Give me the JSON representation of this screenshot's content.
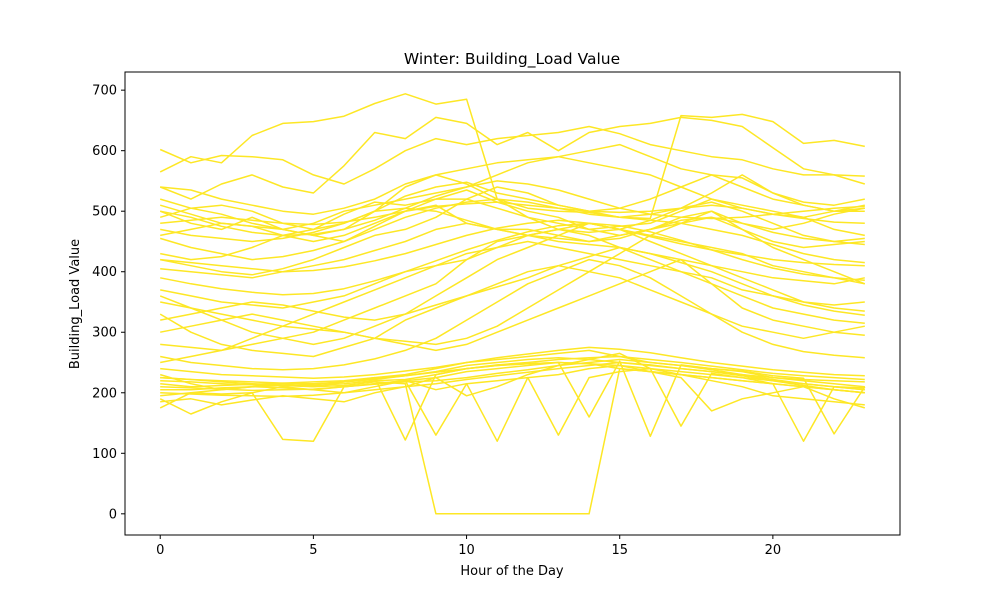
{
  "chart_data": {
    "type": "line",
    "title": "Winter: Building_Load Value",
    "xlabel": "Hour of the Day",
    "ylabel": "Building_Load Value",
    "xlim": [
      -1.15,
      24.15
    ],
    "ylim": [
      -35,
      730
    ],
    "xticks": [
      0,
      5,
      10,
      15,
      20
    ],
    "yticks": [
      0,
      100,
      200,
      300,
      400,
      500,
      600,
      700
    ],
    "grid": false,
    "legend": "none",
    "line_color": "#fde725",
    "x": [
      0,
      1,
      2,
      3,
      4,
      5,
      6,
      7,
      8,
      9,
      10,
      11,
      12,
      13,
      14,
      15,
      16,
      17,
      18,
      19,
      20,
      21,
      22,
      23
    ],
    "series": [
      {
        "values": [
          602,
          580,
          592,
          590,
          585,
          560,
          545,
          570,
          600,
          620,
          610,
          620,
          625,
          630,
          640,
          628,
          610,
          600,
          590,
          585,
          570,
          560,
          560,
          558
        ]
      },
      {
        "values": [
          565,
          590,
          580,
          625,
          645,
          648,
          657,
          678,
          694,
          677,
          685,
          520,
          505,
          500,
          498,
          490,
          488,
          658,
          655,
          660,
          648,
          612,
          617,
          607
        ]
      },
      {
        "values": [
          540,
          520,
          545,
          560,
          540,
          530,
          575,
          630,
          620,
          655,
          645,
          610,
          630,
          600,
          630,
          640,
          645,
          655,
          650,
          640,
          605,
          570,
          560,
          545
        ]
      },
      {
        "values": [
          500,
          480,
          470,
          490,
          470,
          480,
          500,
          510,
          520,
          530,
          540,
          560,
          580,
          590,
          600,
          610,
          590,
          570,
          560,
          540,
          520,
          510,
          500,
          500
        ]
      },
      {
        "values": [
          520,
          505,
          495,
          480,
          470,
          460,
          470,
          500,
          525,
          540,
          548,
          530,
          520,
          510,
          500,
          505,
          520,
          540,
          560,
          555,
          530,
          515,
          510,
          520
        ]
      },
      {
        "values": [
          490,
          505,
          510,
          500,
          480,
          470,
          495,
          515,
          510,
          520,
          535,
          515,
          500,
          490,
          470,
          460,
          470,
          490,
          500,
          480,
          470,
          480,
          495,
          505
        ]
      },
      {
        "values": [
          470,
          460,
          455,
          450,
          455,
          465,
          480,
          500,
          540,
          560,
          545,
          520,
          490,
          480,
          470,
          475,
          480,
          500,
          520,
          510,
          500,
          490,
          470,
          460
        ]
      },
      {
        "values": [
          510,
          495,
          480,
          475,
          470,
          460,
          450,
          475,
          500,
          520,
          520,
          505,
          490,
          470,
          465,
          470,
          485,
          505,
          530,
          560,
          530,
          510,
          500,
          505
        ]
      },
      {
        "values": [
          430,
          420,
          425,
          440,
          460,
          470,
          480,
          500,
          505,
          500,
          485,
          470,
          470,
          460,
          450,
          455,
          470,
          485,
          490,
          470,
          450,
          440,
          445,
          450
        ]
      },
      {
        "values": [
          420,
          410,
          400,
          395,
          405,
          420,
          440,
          460,
          470,
          490,
          520,
          540,
          530,
          510,
          500,
          490,
          485,
          480,
          470,
          460,
          445,
          430,
          420,
          415
        ]
      },
      {
        "values": [
          405,
          400,
          395,
          390,
          400,
          410,
          420,
          435,
          450,
          470,
          480,
          470,
          460,
          450,
          445,
          440,
          430,
          420,
          410,
          400,
          390,
          385,
          380,
          390
        ]
      },
      {
        "values": [
          460,
          470,
          480,
          475,
          460,
          450,
          460,
          480,
          500,
          510,
          480,
          470,
          460,
          455,
          450,
          460,
          470,
          480,
          490,
          480,
          465,
          455,
          450,
          455
        ]
      },
      {
        "values": [
          370,
          360,
          350,
          345,
          340,
          350,
          360,
          380,
          400,
          410,
          420,
          440,
          460,
          470,
          480,
          470,
          460,
          450,
          440,
          430,
          410,
          400,
          390,
          380
        ]
      },
      {
        "values": [
          330,
          300,
          280,
          270,
          265,
          260,
          275,
          290,
          320,
          340,
          360,
          380,
          400,
          410,
          400,
          390,
          370,
          350,
          330,
          310,
          300,
          290,
          300,
          310
        ]
      },
      {
        "values": [
          280,
          275,
          270,
          280,
          290,
          300,
          320,
          340,
          360,
          380,
          420,
          450,
          460,
          470,
          460,
          440,
          420,
          400,
          380,
          360,
          340,
          330,
          320,
          315
        ]
      },
      {
        "values": [
          300,
          310,
          320,
          330,
          320,
          310,
          300,
          290,
          280,
          270,
          280,
          300,
          320,
          340,
          360,
          380,
          400,
          420,
          380,
          340,
          320,
          310,
          300,
          295
        ]
      },
      {
        "values": [
          250,
          260,
          270,
          290,
          310,
          330,
          350,
          370,
          390,
          410,
          430,
          440,
          450,
          440,
          430,
          420,
          410,
          400,
          390,
          370,
          360,
          350,
          345,
          350
        ]
      },
      {
        "values": [
          350,
          340,
          330,
          320,
          310,
          305,
          300,
          290,
          285,
          280,
          290,
          310,
          340,
          370,
          400,
          430,
          460,
          480,
          500,
          470,
          440,
          420,
          400,
          380
        ]
      },
      {
        "values": [
          215,
          210,
          212,
          214,
          216,
          218,
          220,
          225,
          230,
          240,
          250,
          255,
          260,
          265,
          270,
          260,
          250,
          245,
          240,
          235,
          225,
          220,
          215,
          210
        ]
      },
      {
        "values": [
          205,
          205,
          208,
          210,
          212,
          212,
          215,
          220,
          222,
          230,
          240,
          245,
          248,
          250,
          248,
          245,
          240,
          235,
          230,
          225,
          220,
          215,
          210,
          205
        ]
      },
      {
        "values": [
          220,
          218,
          215,
          213,
          212,
          214,
          218,
          223,
          228,
          235,
          245,
          250,
          255,
          258,
          255,
          250,
          245,
          240,
          235,
          230,
          225,
          222,
          220,
          218
        ]
      },
      {
        "values": [
          195,
          200,
          205,
          210,
          208,
          205,
          210,
          215,
          220,
          225,
          235,
          240,
          245,
          250,
          248,
          240,
          235,
          230,
          225,
          220,
          215,
          210,
          205,
          200
        ]
      },
      {
        "values": [
          210,
          208,
          206,
          204,
          205,
          206,
          210,
          214,
          218,
          220,
          225,
          232,
          238,
          245,
          250,
          255,
          250,
          245,
          238,
          230,
          222,
          215,
          210,
          208
        ]
      },
      {
        "values": [
          225,
          222,
          220,
          218,
          216,
          215,
          218,
          222,
          228,
          234,
          240,
          246,
          250,
          255,
          258,
          260,
          255,
          250,
          244,
          238,
          232,
          228,
          225,
          222
        ]
      },
      {
        "values": [
          200,
          198,
          196,
          195,
          194,
          196,
          200,
          205,
          210,
          215,
          222,
          228,
          234,
          240,
          245,
          250,
          246,
          240,
          235,
          228,
          220,
          212,
          205,
          200
        ]
      },
      {
        "values": [
          175,
          200,
          198,
          200,
          123,
          120,
          210,
          215,
          220,
          205,
          215,
          220,
          225,
          130,
          225,
          235,
          240,
          145,
          232,
          225,
          215,
          120,
          210,
          205
        ]
      },
      {
        "values": [
          230,
          215,
          205,
          210,
          215,
          210,
          218,
          225,
          122,
          230,
          240,
          245,
          248,
          250,
          160,
          252,
          128,
          246,
          240,
          236,
          228,
          224,
          132,
          210
        ]
      },
      {
        "values": [
          225,
          222,
          218,
          215,
          212,
          210,
          212,
          218,
          215,
          0,
          0,
          0,
          0,
          0,
          0,
          240,
          235,
          230,
          225,
          220,
          215,
          210,
          205,
          200
        ]
      },
      {
        "values": [
          190,
          165,
          185,
          200,
          210,
          205,
          200,
          210,
          220,
          130,
          215,
          120,
          225,
          230,
          240,
          245,
          235,
          225,
          170,
          190,
          200,
          210,
          190,
          175
        ]
      },
      {
        "values": [
          240,
          235,
          230,
          228,
          226,
          224,
          226,
          230,
          236,
          242,
          250,
          258,
          264,
          270,
          275,
          272,
          266,
          258,
          250,
          244,
          238,
          234,
          230,
          228
        ]
      },
      {
        "values": [
          185,
          190,
          180,
          188,
          195,
          190,
          185,
          200,
          210,
          225,
          195,
          210,
          230,
          245,
          255,
          265,
          240,
          230,
          220,
          210,
          195,
          190,
          185,
          180
        ]
      },
      {
        "values": [
          360,
          340,
          320,
          300,
          290,
          280,
          290,
          310,
          330,
          360,
          390,
          420,
          440,
          460,
          480,
          470,
          450,
          430,
          410,
          390,
          370,
          350,
          340,
          335
        ]
      },
      {
        "values": [
          540,
          535,
          520,
          510,
          500,
          495,
          505,
          520,
          545,
          560,
          570,
          580,
          585,
          590,
          580,
          570,
          560,
          540,
          520,
          505,
          495,
          490,
          500,
          510
        ]
      },
      {
        "values": [
          455,
          440,
          430,
          420,
          425,
          435,
          450,
          470,
          490,
          505,
          515,
          520,
          515,
          505,
          495,
          490,
          495,
          505,
          515,
          500,
          480,
          460,
          450,
          445
        ]
      },
      {
        "values": [
          480,
          485,
          490,
          485,
          480,
          478,
          482,
          490,
          500,
          508,
          512,
          515,
          510,
          505,
          500,
          498,
          500,
          505,
          510,
          505,
          495,
          488,
          482,
          480
        ]
      },
      {
        "values": [
          420,
          415,
          410,
          405,
          400,
          402,
          408,
          418,
          430,
          445,
          460,
          472,
          480,
          485,
          480,
          470,
          458,
          446,
          436,
          428,
          420,
          415,
          412,
          410
        ]
      },
      {
        "values": [
          260,
          250,
          245,
          240,
          238,
          240,
          246,
          256,
          270,
          290,
          320,
          350,
          380,
          400,
          420,
          410,
          390,
          360,
          330,
          300,
          280,
          268,
          262,
          258
        ]
      },
      {
        "values": [
          320,
          330,
          340,
          350,
          345,
          335,
          325,
          320,
          330,
          345,
          360,
          375,
          390,
          410,
          425,
          440,
          430,
          415,
          400,
          380,
          360,
          345,
          335,
          328
        ]
      },
      {
        "values": [
          500,
          490,
          475,
          465,
          460,
          462,
          470,
          485,
          505,
          525,
          540,
          550,
          545,
          535,
          520,
          505,
          495,
          490,
          488,
          490,
          495,
          500,
          505,
          508
        ]
      },
      {
        "values": [
          390,
          380,
          372,
          366,
          362,
          364,
          372,
          385,
          400,
          418,
          436,
          452,
          466,
          476,
          480,
          476,
          466,
          452,
          436,
          420,
          406,
          396,
          390,
          386
        ]
      }
    ]
  }
}
